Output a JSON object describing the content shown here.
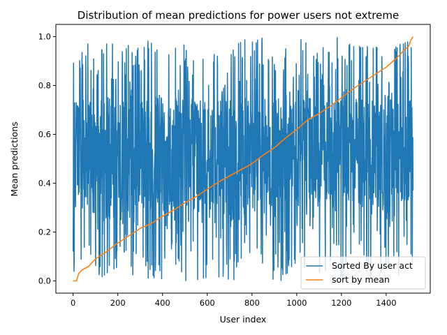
{
  "chart_data": {
    "type": "line",
    "title": "Distribution of mean predictions for power users not extreme",
    "xlabel": "User index",
    "ylabel": "Mean predictions",
    "xlim": [
      -77,
      1597
    ],
    "ylim": [
      -0.05,
      1.05
    ],
    "xticks": [
      0,
      200,
      400,
      600,
      800,
      1000,
      1200,
      1400
    ],
    "yticks": [
      0.0,
      0.2,
      0.4,
      0.6,
      0.8,
      1.0
    ],
    "x_range": [
      0,
      1520
    ],
    "grid": false,
    "legend_position": "lower-right",
    "series": [
      {
        "name": "Sorted By user act",
        "color": "#1f77b4",
        "description": "noisy values spanning 0.0 to 1.0 across all user indices",
        "min": 0.0,
        "max": 1.0,
        "start_value": 0.12,
        "end_value": 0.37
      },
      {
        "name": "sort by mean",
        "color": "#ff7f0e",
        "points": [
          [
            0,
            0.0
          ],
          [
            15,
            0.0
          ],
          [
            25,
            0.03
          ],
          [
            40,
            0.045
          ],
          [
            70,
            0.06
          ],
          [
            100,
            0.09
          ],
          [
            150,
            0.12
          ],
          [
            200,
            0.155
          ],
          [
            250,
            0.185
          ],
          [
            300,
            0.215
          ],
          [
            350,
            0.235
          ],
          [
            400,
            0.265
          ],
          [
            450,
            0.29
          ],
          [
            500,
            0.32
          ],
          [
            550,
            0.345
          ],
          [
            600,
            0.375
          ],
          [
            650,
            0.405
          ],
          [
            700,
            0.43
          ],
          [
            750,
            0.455
          ],
          [
            800,
            0.48
          ],
          [
            850,
            0.515
          ],
          [
            900,
            0.545
          ],
          [
            950,
            0.585
          ],
          [
            1000,
            0.62
          ],
          [
            1050,
            0.66
          ],
          [
            1100,
            0.685
          ],
          [
            1150,
            0.715
          ],
          [
            1200,
            0.75
          ],
          [
            1250,
            0.785
          ],
          [
            1300,
            0.815
          ],
          [
            1350,
            0.845
          ],
          [
            1400,
            0.875
          ],
          [
            1450,
            0.915
          ],
          [
            1480,
            0.945
          ],
          [
            1500,
            0.96
          ],
          [
            1510,
            0.985
          ],
          [
            1520,
            1.0
          ]
        ]
      }
    ]
  }
}
